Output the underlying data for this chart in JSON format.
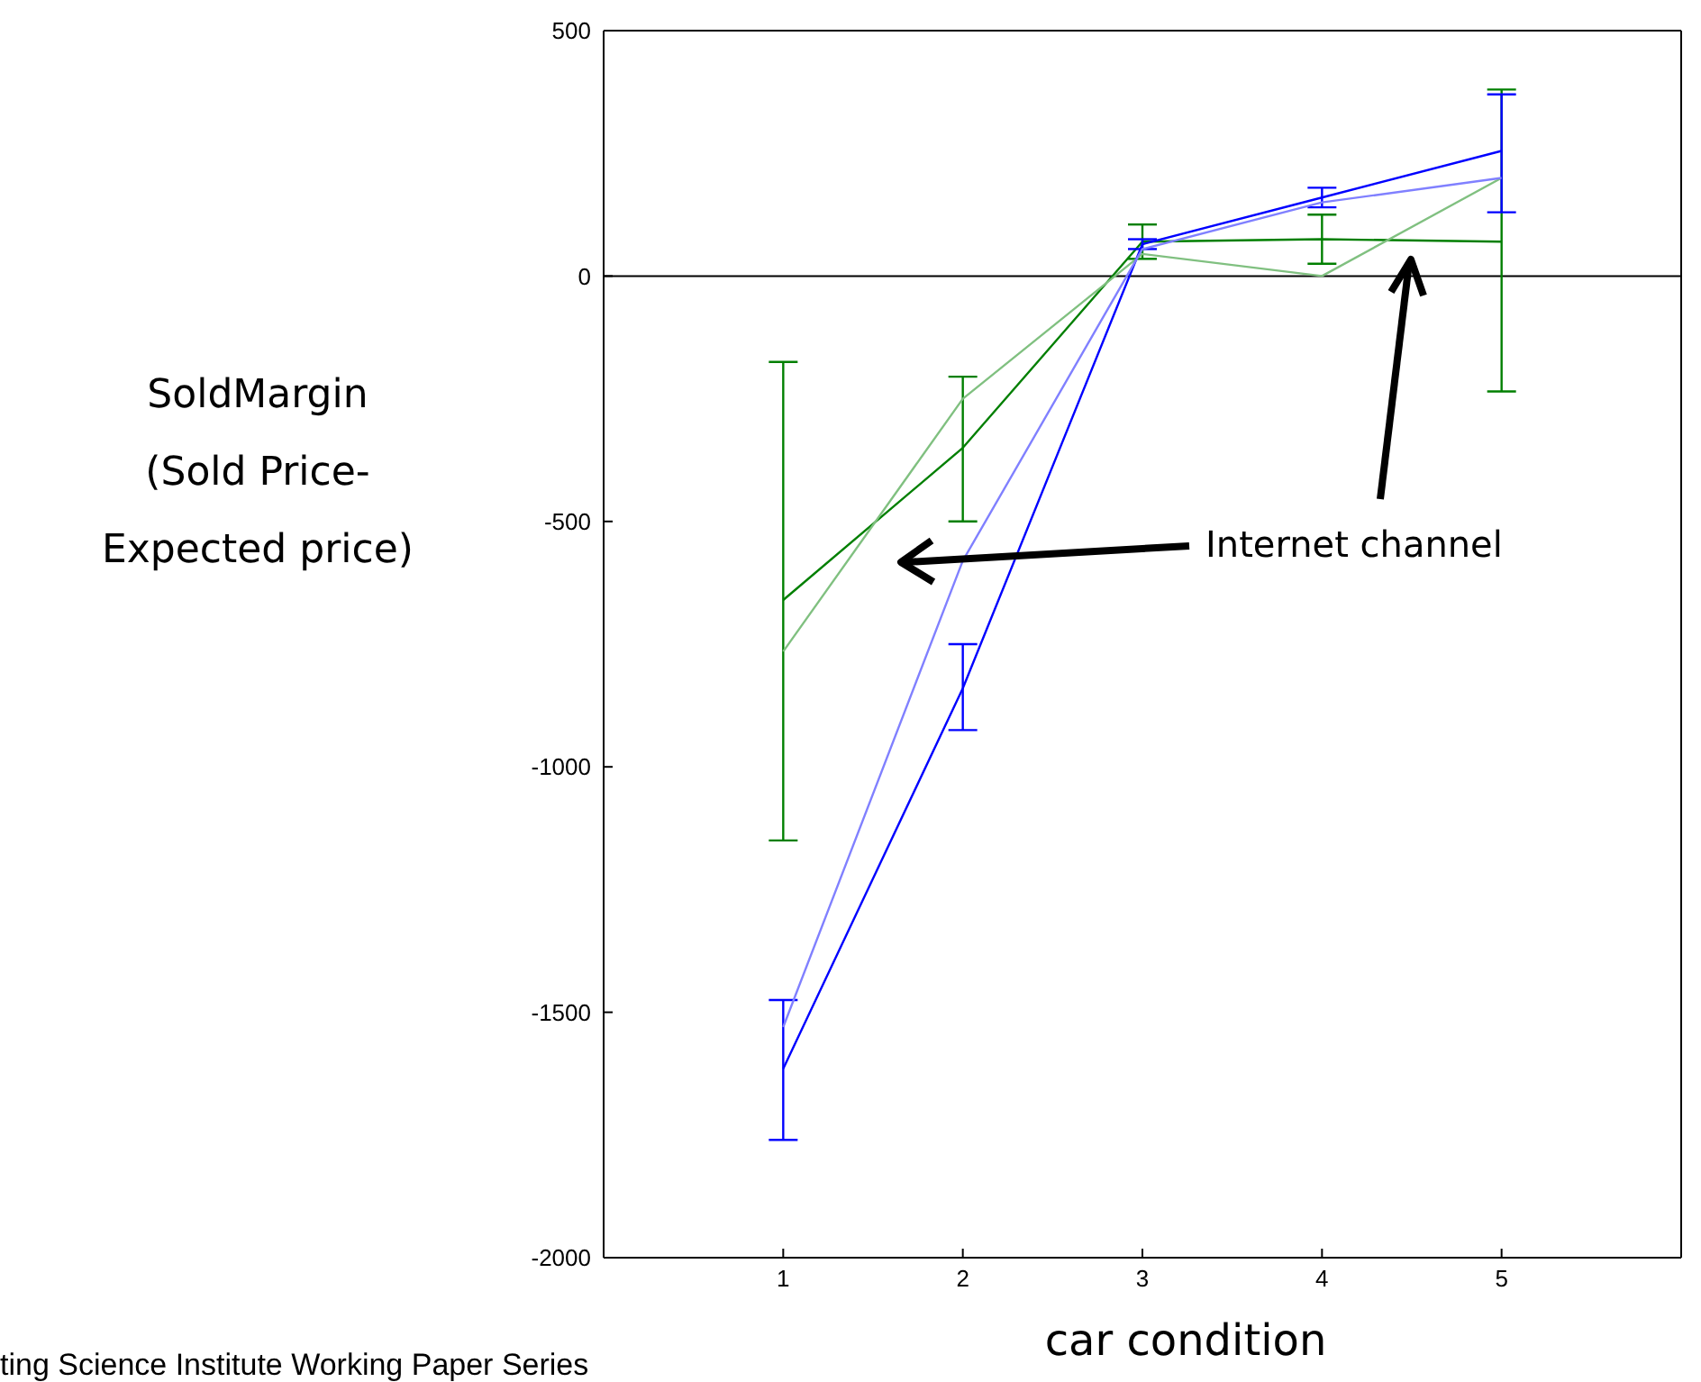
{
  "chart_data": {
    "type": "line",
    "xlabel": "car condition",
    "ylabel": "SoldMargin\n(Sold Price-\nExpected price)",
    "x": [
      1,
      2,
      3,
      4,
      5
    ],
    "series": [
      {
        "color": "#007f00",
        "values": [
          -660,
          -350,
          70,
          75,
          70
        ],
        "errors": [
          [
            -1150,
            -175
          ],
          [
            -500,
            -205
          ],
          [
            35,
            105
          ],
          [
            25,
            125
          ],
          [
            -235,
            380
          ]
        ]
      },
      {
        "color": "#80c080",
        "values": [
          -765,
          -250,
          45,
          0,
          200
        ]
      },
      {
        "color": "#0000ff",
        "values": [
          -1615,
          -840,
          65,
          160,
          255
        ],
        "errors": [
          [
            -1760,
            -1475
          ],
          [
            -925,
            -750
          ],
          [
            55,
            75
          ],
          [
            140,
            180
          ],
          [
            130,
            370
          ]
        ]
      },
      {
        "color": "#8080ff",
        "values": [
          -1530,
          -580,
          55,
          150,
          200
        ]
      }
    ],
    "xlim": [
      0,
      6
    ],
    "xticks": [
      1,
      2,
      3,
      4,
      5
    ],
    "ylim": [
      -2000,
      500
    ],
    "yticks": [
      -2000,
      -1500,
      -1000,
      -500,
      0,
      500
    ],
    "ref_lines": [
      {
        "axis": "y",
        "value": 0,
        "color": "#000000"
      }
    ],
    "marker": "none",
    "grid": false,
    "annotations": [
      "Internet channel",
      "ting Science Institute Working Paper Series"
    ]
  }
}
